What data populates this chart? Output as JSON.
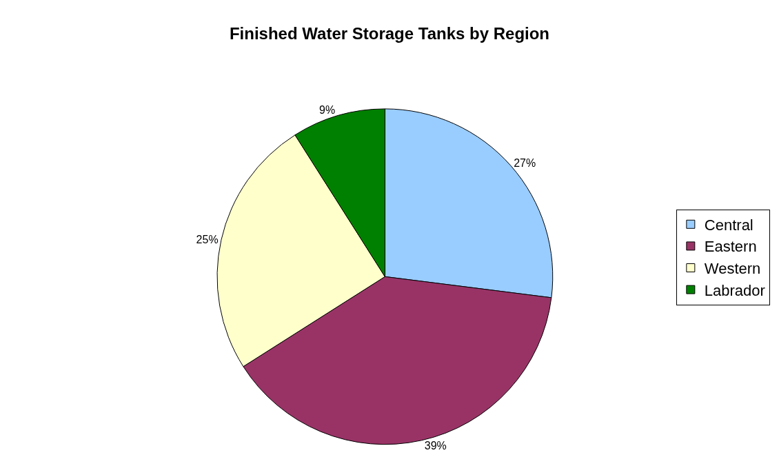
{
  "chart_data": {
    "type": "pie",
    "title": "Finished Water Storage Tanks by Region",
    "categories": [
      "Central",
      "Eastern",
      "Western",
      "Labrador"
    ],
    "values": [
      27,
      39,
      25,
      9
    ],
    "value_labels": [
      "27%",
      "39%",
      "25%",
      "9%"
    ],
    "colors": [
      "#99ccff",
      "#993366",
      "#ffffcc",
      "#008000"
    ],
    "legend": "right"
  }
}
